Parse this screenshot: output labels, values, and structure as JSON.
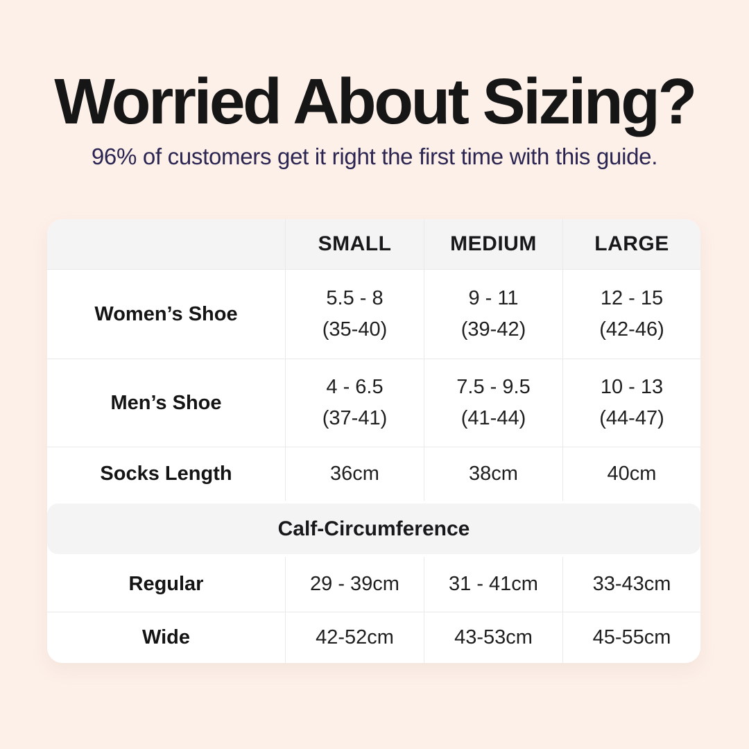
{
  "header": {
    "title": "Worried About Sizing?",
    "subtitle": "96% of customers get it right the first time with this guide."
  },
  "colors": {
    "page_background": "#fdf0e9",
    "title_text": "#161616",
    "subtitle_text": "#2b2551",
    "table_background": "#ffffff",
    "table_header_background": "#f4f4f5",
    "divider": "#e9e9eb",
    "table_text": "#1e1e1e"
  },
  "table": {
    "columns": [
      "SMALL",
      "MEDIUM",
      "LARGE"
    ],
    "shoe_rows": [
      {
        "label": "Women’s Shoe",
        "small": [
          "5.5 - 8",
          "(35-40)"
        ],
        "medium": [
          "9 - 11",
          "(39-42)"
        ],
        "large": [
          "12 - 15",
          "(42-46)"
        ]
      },
      {
        "label": "Men’s Shoe",
        "small": [
          "4 - 6.5",
          "(37-41)"
        ],
        "medium": [
          "7.5 - 9.5",
          "(41-44)"
        ],
        "large": [
          "10 - 13",
          "(44-47)"
        ]
      }
    ],
    "socks_row": {
      "label": "Socks Length",
      "small": "36cm",
      "medium": "38cm",
      "large": "40cm"
    },
    "section_title": "Calf-Circumference",
    "calf_rows": [
      {
        "label": "Regular",
        "small": "29 - 39cm",
        "medium": "31 - 41cm",
        "large": "33-43cm"
      },
      {
        "label": "Wide",
        "small": "42-52cm",
        "medium": "43-53cm",
        "large": "45-55cm"
      }
    ]
  },
  "chart_data": {
    "type": "table",
    "title": "Worried About Sizing?",
    "subtitle": "96% of customers get it right the first time with this guide.",
    "columns": [
      "",
      "SMALL",
      "MEDIUM",
      "LARGE"
    ],
    "rows": [
      [
        "Women’s Shoe",
        "5.5 - 8 (35-40)",
        "9 - 11 (39-42)",
        "12 - 15 (42-46)"
      ],
      [
        "Men’s Shoe",
        "4 - 6.5 (37-41)",
        "7.5 - 9.5 (41-44)",
        "10 - 13 (44-47)"
      ],
      [
        "Socks Length",
        "36cm",
        "38cm",
        "40cm"
      ],
      [
        "Calf-Circumference",
        "",
        "",
        ""
      ],
      [
        "Regular",
        "29 - 39cm",
        "31 - 41cm",
        "33-43cm"
      ],
      [
        "Wide",
        "42-52cm",
        "43-53cm",
        "45-55cm"
      ]
    ]
  }
}
